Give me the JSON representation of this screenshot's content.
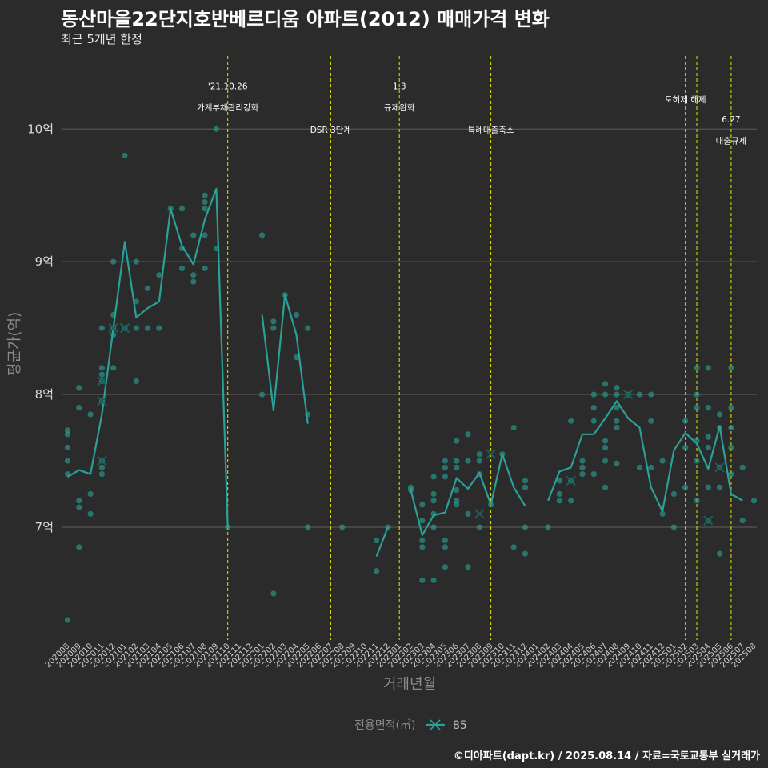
{
  "header": {
    "title": "동산마을22단지호반베르디움 아파트(2012) 매매가격 변화",
    "subtitle": "최근 5개년 한정"
  },
  "caption": "©디아파트(dapt.kr) / 2025.08.14 / 자료=국토교통부 실거래가",
  "colors": {
    "background": "#2b2b2b",
    "grid": "#555555",
    "series": "#2aa198",
    "vline": "#e6e600"
  },
  "chart_data": {
    "type": "line",
    "title": "동산마을22단지호반베르디움 아파트(2012) 매매가격 변화",
    "subtitle": "최근 5개년 한정",
    "xlabel": "거래년월",
    "ylabel": "평균가(억)",
    "ylim": [
      6.15,
      10.55
    ],
    "yticks": [
      {
        "value": 7,
        "label": "7억"
      },
      {
        "value": 8,
        "label": "8억"
      },
      {
        "value": 9,
        "label": "9억"
      },
      {
        "value": 10,
        "label": "10억"
      }
    ],
    "grid": true,
    "legend": {
      "title": "전용면적(㎡)",
      "position": "bottom",
      "items": [
        "85"
      ]
    },
    "x_categories": [
      "202008",
      "202009",
      "202010",
      "202011",
      "202012",
      "202101",
      "202102",
      "202103",
      "202104",
      "202105",
      "202106",
      "202107",
      "202108",
      "202109",
      "202110",
      "202111",
      "202112",
      "202201",
      "202202",
      "202203",
      "202204",
      "202205",
      "202206",
      "202207",
      "202208",
      "202209",
      "202210",
      "202211",
      "202212",
      "202301",
      "202302",
      "202303",
      "202304",
      "202305",
      "202306",
      "202307",
      "202308",
      "202309",
      "202310",
      "202311",
      "202312",
      "202401",
      "202402",
      "202403",
      "202404",
      "202405",
      "202406",
      "202407",
      "202408",
      "202409",
      "202410",
      "202411",
      "202412",
      "202501",
      "202502",
      "202503",
      "202504",
      "202505",
      "202506",
      "202507",
      "202508"
    ],
    "series": [
      {
        "name": "85",
        "mean_line": [
          [
            [
              "202008",
              7.38
            ],
            [
              "202009",
              7.43
            ],
            [
              "202010",
              7.4
            ],
            [
              "202011",
              7.85
            ],
            [
              "202012",
              8.5
            ],
            [
              "202101",
              9.15
            ],
            [
              "202102",
              8.58
            ],
            [
              "202103",
              8.65
            ],
            [
              "202104",
              8.7
            ],
            [
              "202105",
              9.4
            ],
            [
              "202106",
              9.12
            ],
            [
              "202107",
              8.98
            ],
            [
              "202108",
              9.32
            ],
            [
              "202109",
              9.55
            ],
            [
              "202110",
              7.0
            ]
          ],
          [
            [
              "202201",
              8.6
            ],
            [
              "202202",
              7.88
            ],
            [
              "202203",
              8.75
            ],
            [
              "202204",
              8.45
            ],
            [
              "202205",
              7.78
            ]
          ],
          [
            [
              "202211",
              6.78
            ],
            [
              "202212",
              7.0
            ]
          ],
          [
            [
              "202302",
              7.28
            ],
            [
              "202303",
              6.94
            ],
            [
              "202304",
              7.09
            ],
            [
              "202305",
              7.11
            ],
            [
              "202306",
              7.37
            ],
            [
              "202307",
              7.29
            ],
            [
              "202308",
              7.41
            ],
            [
              "202309",
              7.17
            ],
            [
              "202310",
              7.55
            ],
            [
              "202311",
              7.3
            ],
            [
              "202312",
              7.16
            ]
          ],
          [
            [
              "202402",
              7.2
            ],
            [
              "202403",
              7.42
            ],
            [
              "202404",
              7.45
            ],
            [
              "202405",
              7.7
            ],
            [
              "202406",
              7.7
            ],
            [
              "202407",
              7.82
            ],
            [
              "202408",
              7.95
            ],
            [
              "202409",
              7.82
            ],
            [
              "202410",
              7.75
            ],
            [
              "202411",
              7.3
            ],
            [
              "202412",
              7.12
            ],
            [
              "202501",
              7.58
            ],
            [
              "202502",
              7.71
            ],
            [
              "202503",
              7.63
            ],
            [
              "202504",
              7.44
            ],
            [
              "202505",
              7.76
            ],
            [
              "202506",
              7.25
            ],
            [
              "202507",
              7.2
            ]
          ]
        ],
        "points": [
          [
            "202008",
            6.3
          ],
          [
            "202008",
            7.4
          ],
          [
            "202008",
            7.5
          ],
          [
            "202008",
            7.6
          ],
          [
            "202008",
            7.7
          ],
          [
            "202008",
            7.73
          ],
          [
            "202009",
            6.85
          ],
          [
            "202009",
            7.15
          ],
          [
            "202009",
            7.2
          ],
          [
            "202009",
            7.9
          ],
          [
            "202009",
            8.05
          ],
          [
            "202010",
            7.1
          ],
          [
            "202010",
            7.25
          ],
          [
            "202010",
            7.85
          ],
          [
            "202011",
            7.4
          ],
          [
            "202011",
            7.45
          ],
          [
            "202011",
            7.5
          ],
          [
            "202011",
            7.95
          ],
          [
            "202011",
            8.1
          ],
          [
            "202011",
            8.15
          ],
          [
            "202011",
            8.2
          ],
          [
            "202011",
            8.5
          ],
          [
            "202012",
            8.2
          ],
          [
            "202012",
            8.45
          ],
          [
            "202012",
            8.5
          ],
          [
            "202012",
            8.6
          ],
          [
            "202012",
            9.0
          ],
          [
            "202101",
            8.5
          ],
          [
            "202101",
            9.8
          ],
          [
            "202102",
            8.1
          ],
          [
            "202102",
            8.5
          ],
          [
            "202102",
            8.7
          ],
          [
            "202102",
            9.0
          ],
          [
            "202103",
            8.5
          ],
          [
            "202103",
            8.8
          ],
          [
            "202104",
            8.5
          ],
          [
            "202104",
            8.9
          ],
          [
            "202105",
            9.4
          ],
          [
            "202106",
            8.95
          ],
          [
            "202106",
            9.1
          ],
          [
            "202106",
            9.4
          ],
          [
            "202107",
            8.85
          ],
          [
            "202107",
            8.9
          ],
          [
            "202107",
            9.2
          ],
          [
            "202108",
            8.95
          ],
          [
            "202108",
            9.2
          ],
          [
            "202108",
            9.4
          ],
          [
            "202108",
            9.45
          ],
          [
            "202108",
            9.5
          ],
          [
            "202109",
            9.1
          ],
          [
            "202109",
            10.0
          ],
          [
            "202110",
            7.0
          ],
          [
            "202201",
            8.0
          ],
          [
            "202201",
            9.2
          ],
          [
            "202202",
            6.5
          ],
          [
            "202202",
            8.5
          ],
          [
            "202202",
            8.55
          ],
          [
            "202203",
            8.75
          ],
          [
            "202204",
            8.28
          ],
          [
            "202204",
            8.6
          ],
          [
            "202205",
            7.0
          ],
          [
            "202205",
            7.85
          ],
          [
            "202205",
            8.5
          ],
          [
            "202208",
            7.0
          ],
          [
            "202211",
            6.67
          ],
          [
            "202211",
            6.9
          ],
          [
            "202212",
            7.0
          ],
          [
            "202302",
            7.28
          ],
          [
            "202302",
            7.3
          ],
          [
            "202303",
            6.6
          ],
          [
            "202303",
            6.85
          ],
          [
            "202303",
            6.9
          ],
          [
            "202303",
            7.05
          ],
          [
            "202303",
            7.17
          ],
          [
            "202304",
            6.6
          ],
          [
            "202304",
            7.0
          ],
          [
            "202304",
            7.1
          ],
          [
            "202304",
            7.2
          ],
          [
            "202304",
            7.25
          ],
          [
            "202304",
            7.38
          ],
          [
            "202305",
            6.7
          ],
          [
            "202305",
            6.85
          ],
          [
            "202305",
            6.9
          ],
          [
            "202305",
            7.38
          ],
          [
            "202305",
            7.45
          ],
          [
            "202305",
            7.5
          ],
          [
            "202306",
            7.17
          ],
          [
            "202306",
            7.2
          ],
          [
            "202306",
            7.28
          ],
          [
            "202306",
            7.45
          ],
          [
            "202306",
            7.5
          ],
          [
            "202306",
            7.65
          ],
          [
            "202307",
            6.7
          ],
          [
            "202307",
            7.1
          ],
          [
            "202307",
            7.5
          ],
          [
            "202307",
            7.7
          ],
          [
            "202308",
            7.0
          ],
          [
            "202308",
            7.4
          ],
          [
            "202308",
            7.5
          ],
          [
            "202308",
            7.55
          ],
          [
            "202309",
            7.17
          ],
          [
            "202310",
            7.55
          ],
          [
            "202311",
            6.85
          ],
          [
            "202311",
            7.75
          ],
          [
            "202312",
            6.8
          ],
          [
            "202312",
            7.0
          ],
          [
            "202312",
            7.3
          ],
          [
            "202312",
            7.35
          ],
          [
            "202402",
            7.0
          ],
          [
            "202403",
            7.2
          ],
          [
            "202403",
            7.25
          ],
          [
            "202403",
            7.35
          ],
          [
            "202404",
            7.2
          ],
          [
            "202404",
            7.35
          ],
          [
            "202404",
            7.8
          ],
          [
            "202405",
            7.4
          ],
          [
            "202405",
            7.45
          ],
          [
            "202405",
            7.5
          ],
          [
            "202406",
            7.4
          ],
          [
            "202406",
            7.8
          ],
          [
            "202406",
            7.9
          ],
          [
            "202406",
            8.0
          ],
          [
            "202407",
            7.3
          ],
          [
            "202407",
            7.5
          ],
          [
            "202407",
            7.6
          ],
          [
            "202407",
            7.65
          ],
          [
            "202407",
            8.0
          ],
          [
            "202407",
            8.08
          ],
          [
            "202408",
            7.48
          ],
          [
            "202408",
            7.75
          ],
          [
            "202408",
            7.8
          ],
          [
            "202408",
            7.9
          ],
          [
            "202408",
            8.0
          ],
          [
            "202408",
            8.05
          ],
          [
            "202409",
            8.0
          ],
          [
            "202410",
            7.45
          ],
          [
            "202410",
            8.0
          ],
          [
            "202411",
            7.45
          ],
          [
            "202411",
            7.8
          ],
          [
            "202411",
            8.0
          ],
          [
            "202412",
            7.1
          ],
          [
            "202412",
            7.5
          ],
          [
            "202501",
            7.0
          ],
          [
            "202501",
            7.25
          ],
          [
            "202502",
            7.3
          ],
          [
            "202502",
            7.6
          ],
          [
            "202502",
            7.8
          ],
          [
            "202503",
            7.2
          ],
          [
            "202503",
            7.5
          ],
          [
            "202503",
            7.65
          ],
          [
            "202503",
            7.9
          ],
          [
            "202503",
            8.0
          ],
          [
            "202503",
            8.2
          ],
          [
            "202504",
            7.05
          ],
          [
            "202504",
            7.3
          ],
          [
            "202504",
            7.6
          ],
          [
            "202504",
            7.68
          ],
          [
            "202504",
            7.9
          ],
          [
            "202504",
            8.2
          ],
          [
            "202505",
            6.8
          ],
          [
            "202505",
            7.3
          ],
          [
            "202505",
            7.45
          ],
          [
            "202505",
            7.75
          ],
          [
            "202505",
            7.85
          ],
          [
            "202506",
            7.4
          ],
          [
            "202506",
            7.6
          ],
          [
            "202506",
            7.75
          ],
          [
            "202506",
            7.9
          ],
          [
            "202506",
            8.2
          ],
          [
            "202507",
            7.05
          ],
          [
            "202507",
            7.45
          ],
          [
            "202508",
            7.2
          ]
        ],
        "highlighted": [
          [
            "202011",
            7.5
          ],
          [
            "202011",
            7.95
          ],
          [
            "202011",
            8.1
          ],
          [
            "202012",
            8.5
          ],
          [
            "202101",
            8.5
          ],
          [
            "202308",
            7.1
          ],
          [
            "202309",
            7.55
          ],
          [
            "202404",
            7.35
          ],
          [
            "202409",
            8.0
          ],
          [
            "202504",
            7.05
          ],
          [
            "202505",
            7.45
          ]
        ]
      }
    ],
    "annotations": [
      {
        "x": "202110",
        "lines": [
          "'21.10.26",
          "가계부채관리강화"
        ],
        "label_y": [
          10.3,
          10.14
        ]
      },
      {
        "x": "202207",
        "lines": [
          "DSR 3단계"
        ],
        "label_y": [
          9.97
        ]
      },
      {
        "x": "202301",
        "lines": [
          "1.3",
          "규제완화"
        ],
        "label_y": [
          10.3,
          10.14
        ]
      },
      {
        "x": "202309",
        "lines": [
          "특례대출축소"
        ],
        "label_y": [
          9.97
        ]
      },
      {
        "x": "202502",
        "lines": [
          "토허제 해제"
        ],
        "label_y": [
          10.2
        ]
      },
      {
        "x": "202503",
        "lines": [],
        "label_y": []
      },
      {
        "x": "202506",
        "lines": [
          "6.27",
          "대출규제"
        ],
        "label_y": [
          10.05,
          9.89
        ]
      }
    ]
  }
}
